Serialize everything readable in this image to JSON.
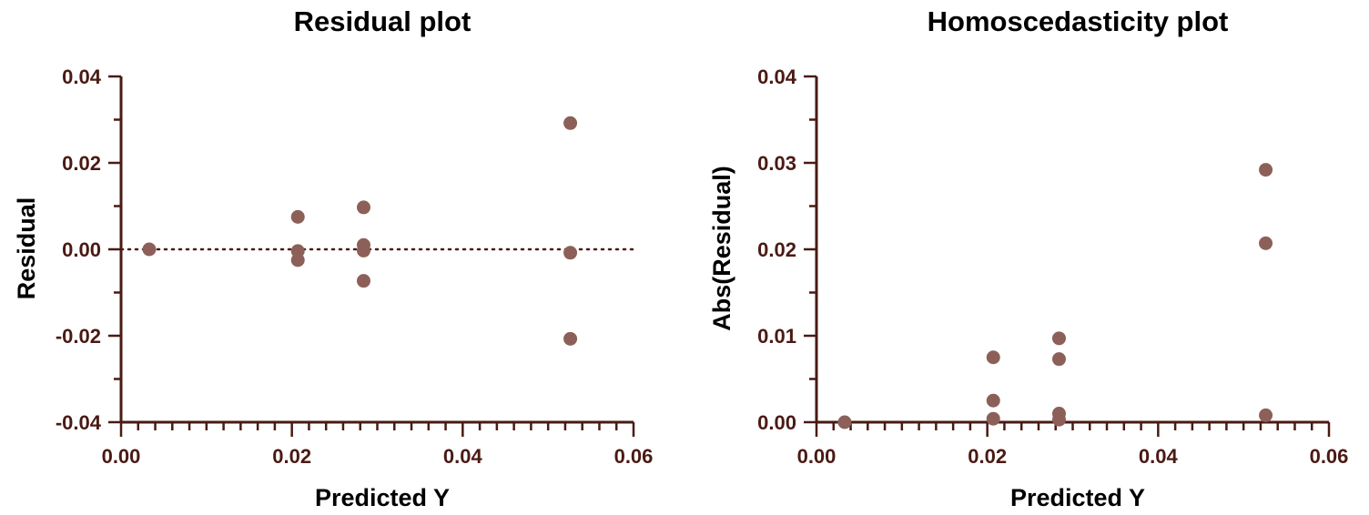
{
  "colors": {
    "axis": "#4a1a14",
    "text": "#4a1a14",
    "point": "#8c6058"
  },
  "chart_data": [
    {
      "type": "scatter",
      "title": "Residual plot",
      "xlabel": "Predicted Y",
      "ylabel": "Residual",
      "xlim": [
        0,
        0.06
      ],
      "ylim": [
        -0.04,
        0.04
      ],
      "x_ticks": [
        "0.00",
        "0.02",
        "0.04",
        "0.06"
      ],
      "y_ticks": [
        "0.04",
        "0.02",
        "0.00",
        "-0.02",
        "-0.04"
      ],
      "reference_line": {
        "y": 0,
        "style": "dotted"
      },
      "grid": false,
      "points": [
        {
          "x": 0.0033,
          "y": 0.0
        },
        {
          "x": 0.0207,
          "y": 0.0075
        },
        {
          "x": 0.0207,
          "y": -0.0004
        },
        {
          "x": 0.0207,
          "y": -0.0025
        },
        {
          "x": 0.0284,
          "y": 0.0097
        },
        {
          "x": 0.0284,
          "y": 0.001
        },
        {
          "x": 0.0284,
          "y": -0.0003
        },
        {
          "x": 0.0284,
          "y": -0.0073
        },
        {
          "x": 0.0526,
          "y": 0.0292
        },
        {
          "x": 0.0526,
          "y": -0.0008
        },
        {
          "x": 0.0526,
          "y": -0.0207
        }
      ]
    },
    {
      "type": "scatter",
      "title": "Homoscedasticity plot",
      "xlabel": "Predicted Y",
      "ylabel": "Abs(Residual)",
      "xlim": [
        0,
        0.06
      ],
      "ylim": [
        0,
        0.04
      ],
      "x_ticks": [
        "0.00",
        "0.02",
        "0.04",
        "0.06"
      ],
      "y_ticks": [
        "0.04",
        "0.03",
        "0.02",
        "0.01",
        "0.00"
      ],
      "grid": false,
      "points": [
        {
          "x": 0.0033,
          "y": 0.0
        },
        {
          "x": 0.0207,
          "y": 0.0075
        },
        {
          "x": 0.0207,
          "y": 0.0025
        },
        {
          "x": 0.0207,
          "y": 0.0004
        },
        {
          "x": 0.0284,
          "y": 0.0097
        },
        {
          "x": 0.0284,
          "y": 0.0073
        },
        {
          "x": 0.0284,
          "y": 0.001
        },
        {
          "x": 0.0284,
          "y": 0.0003
        },
        {
          "x": 0.0526,
          "y": 0.0292
        },
        {
          "x": 0.0526,
          "y": 0.0207
        },
        {
          "x": 0.0526,
          "y": 0.0008
        }
      ]
    }
  ]
}
